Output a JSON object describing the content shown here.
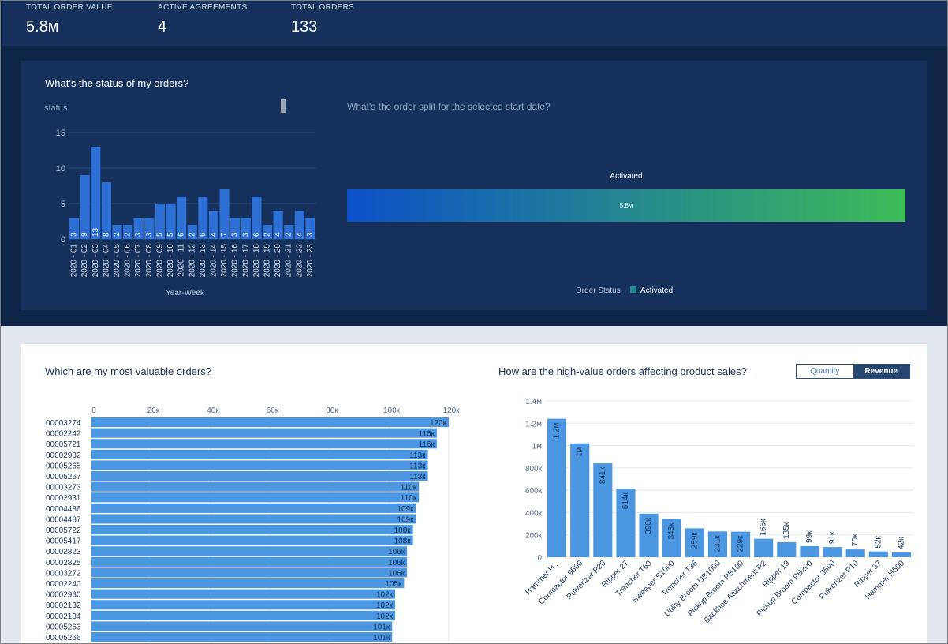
{
  "kpis": [
    {
      "label": "TOTAL ORDER VALUE",
      "value": "5.8м"
    },
    {
      "label": "ACTIVE AGREEMENTS",
      "value": "4"
    },
    {
      "label": "TOTAL ORDERS",
      "value": "133"
    }
  ],
  "status_card": {
    "title": "What's the status of my orders?",
    "subtitle": "status."
  },
  "split_card": {
    "title": "What's the order split for the selected start date?",
    "bar_label": "Activated",
    "bar_value": "5.8м",
    "legend_title": "Order Status",
    "legend_item": "Activated",
    "gradient_start": "#0b50c8",
    "gradient_end": "#3dbc58"
  },
  "valuable_card": {
    "title": "Which are my most valuable orders?"
  },
  "product_card": {
    "title": "How are the high-value orders affecting product sales?",
    "toggle_quantity": "Quantity",
    "toggle_revenue": "Revenue"
  },
  "colors": {
    "bar": "#4c97e1",
    "dark_bar": "#2e6fd6"
  },
  "chart_data": [
    {
      "type": "bar",
      "xlabel": "Year-Week",
      "ylim": [
        0,
        15
      ],
      "yticks": [
        0,
        5,
        10,
        15
      ],
      "categories": [
        "2020 - 01",
        "2020 - 02",
        "2020 - 03",
        "2020 - 04",
        "2020 - 05",
        "2020 - 06",
        "2020 - 07",
        "2020 - 08",
        "2020 - 09",
        "2020 - 10",
        "2020 - 11",
        "2020 - 12",
        "2020 - 13",
        "2020 - 14",
        "2020 - 15",
        "2020 - 16",
        "2020 - 17",
        "2020 - 18",
        "2020 - 19",
        "2020 - 20",
        "2020 - 21",
        "2020 - 22",
        "2020 - 23"
      ],
      "values": [
        3,
        9,
        13,
        8,
        2,
        2,
        3,
        3,
        5,
        5,
        6,
        2,
        6,
        4,
        7,
        3,
        3,
        6,
        2,
        4,
        2,
        4,
        3
      ]
    },
    {
      "type": "bar",
      "orientation": "horizontal",
      "xlim": [
        0,
        120000
      ],
      "xticks": [
        "0",
        "20к",
        "40к",
        "60к",
        "80к",
        "100к",
        "120к"
      ],
      "categories": [
        "00003274",
        "00002242",
        "00005721",
        "00002932",
        "00005265",
        "00005267",
        "00003273",
        "00002931",
        "00004486",
        "00004487",
        "00005722",
        "00005417",
        "00002823",
        "00002825",
        "00003272",
        "00002240",
        "00002930",
        "00002132",
        "00002134",
        "00005263",
        "00005266"
      ],
      "values": [
        120000,
        116000,
        116000,
        113000,
        113000,
        113000,
        110000,
        110000,
        109000,
        109000,
        108000,
        108000,
        106000,
        106000,
        106000,
        105000,
        102000,
        102000,
        102000,
        101000,
        101000
      ],
      "data_labels": [
        "120к",
        "116к",
        "116к",
        "113к",
        "113к",
        "113к",
        "110к",
        "110к",
        "109к",
        "109к",
        "108к",
        "108к",
        "106к",
        "106к",
        "106к",
        "105к",
        "102к",
        "102к",
        "102к",
        "101к",
        "101к"
      ]
    },
    {
      "type": "bar",
      "ylim": [
        0,
        1400000
      ],
      "yticks": [
        "0",
        "200к",
        "400к",
        "600к",
        "800к",
        "1м",
        "1.2м",
        "1.4м"
      ],
      "categories": [
        "Hammer H...",
        "Compactor 9500",
        "Pulverizer P20",
        "Ripper 27",
        "Trencher T60",
        "Sweeper S1000",
        "Trencher T36",
        "Utility Broom UB1000",
        "Pickup Broom PB100",
        "Backhoe Attachment R2",
        "Ripper 19",
        "Pickup Broom PB200",
        "Compactor 3500",
        "Pulverizer P10",
        "Ripper 37",
        "Hammer H500"
      ],
      "values": [
        1240000,
        1020000,
        841000,
        614000,
        390000,
        343000,
        259000,
        231000,
        229000,
        165000,
        135000,
        99000,
        91000,
        70000,
        52000,
        42000
      ],
      "data_labels": [
        "1.2м",
        "1м",
        "841к",
        "614к",
        "390к",
        "343к",
        "259к",
        "231к",
        "229к",
        "165к",
        "135к",
        "99к",
        "91к",
        "70к",
        "52к",
        "42к"
      ]
    }
  ]
}
